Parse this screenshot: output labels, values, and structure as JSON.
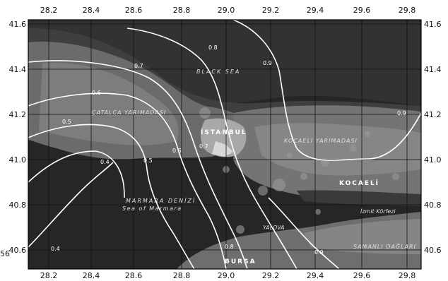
{
  "axes": {
    "lon_ticks": [
      "28.2",
      "28.4",
      "28.6",
      "28.8",
      "29.0",
      "29.2",
      "29.4",
      "29.6",
      "29.8"
    ],
    "lat_ticks": [
      "41.6",
      "41.4",
      "41.2",
      "41.0",
      "40.8",
      "40.6"
    ]
  },
  "labels": {
    "black_sea": "BLACK SEA",
    "marmara_1": "MARMARA DENİZİ",
    "marmara_2": "Sea of Marmara",
    "istanbul": "İSTANBUL",
    "kocaeli": "KOCAELİ",
    "bursa": "BURSA",
    "yalova": "YALOVA",
    "catalca": "ÇATALCA YARIMADASI",
    "kocaeli_pen": "KOCAELİ YARIMADASI",
    "izmit_korfezi": "İzmit Körfezi",
    "samanli": "SAMANLI DAĞLARI"
  },
  "contours": [
    {
      "id": "0.4a",
      "label": "0.4"
    },
    {
      "id": "0.4b",
      "label": "0.4"
    },
    {
      "id": "0.5a",
      "label": "0.5"
    },
    {
      "id": "0.5b",
      "label": "0.5"
    },
    {
      "id": "0.6a",
      "label": "0.6"
    },
    {
      "id": "0.6b",
      "label": "0.6"
    },
    {
      "id": "0.7a",
      "label": "0.7"
    },
    {
      "id": "0.7b",
      "label": "0.7"
    },
    {
      "id": "0.8a",
      "label": "0.8"
    },
    {
      "id": "0.8b",
      "label": "0.8"
    },
    {
      "id": "0.9a",
      "label": "0.9"
    },
    {
      "id": "0.9b",
      "label": "0.9"
    },
    {
      "id": "0.9c",
      "label": "0.9"
    }
  ],
  "side_mark": "56",
  "colors": {
    "sea_dark": "#2b2b2b",
    "sea_mid": "#3c3c3c",
    "land_dark": "#4e4e4e",
    "land_light": "#7a7a7a",
    "contour": "#ffffff"
  }
}
